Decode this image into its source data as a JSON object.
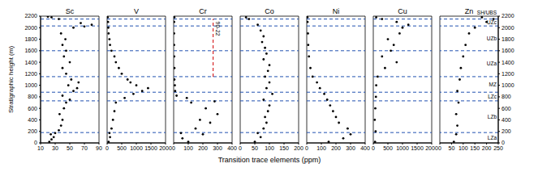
{
  "chart_data": [
    {
      "type": "scatter",
      "title": "Sc",
      "color": "#000000",
      "marker": "circle",
      "grid": false,
      "x": [
        22,
        25,
        28,
        24,
        30,
        35,
        38,
        40,
        36,
        42,
        45,
        50,
        40,
        55,
        60,
        48,
        62,
        52,
        45,
        40,
        50,
        42,
        45,
        40,
        44,
        38,
        55,
        70,
        80,
        65,
        35,
        25,
        20
      ],
      "y": [
        20,
        60,
        100,
        150,
        170,
        220,
        300,
        400,
        500,
        600,
        700,
        750,
        820,
        900,
        950,
        1000,
        1050,
        1100,
        1200,
        1300,
        1400,
        1500,
        1600,
        1700,
        1800,
        1900,
        2000,
        2020,
        2050,
        2080,
        2150,
        2180,
        2190
      ],
      "xlim": [
        10,
        90
      ],
      "xticks": [
        10,
        30,
        50,
        70,
        90
      ],
      "ylim": [
        0,
        2200
      ],
      "yticks": [
        0,
        200,
        400,
        600,
        800,
        1000,
        1200,
        1400,
        1600,
        1800,
        2000,
        2200
      ]
    },
    {
      "type": "scatter",
      "title": "V",
      "color": "#000000",
      "marker": "circle",
      "grid": false,
      "tick_labels": "x",
      "x": [
        50,
        100,
        80,
        150,
        200,
        250,
        300,
        600,
        900,
        1200,
        1400,
        1000,
        800,
        700,
        500,
        400,
        300,
        250,
        150,
        100,
        80,
        50,
        40,
        30,
        20
      ],
      "y": [
        20,
        100,
        170,
        250,
        400,
        550,
        700,
        780,
        850,
        900,
        950,
        1000,
        1050,
        1100,
        1200,
        1300,
        1400,
        1500,
        1600,
        1700,
        1800,
        1900,
        2000,
        2100,
        2180
      ],
      "xlim": [
        0,
        2000
      ],
      "xticks": [
        0,
        500,
        1000,
        1500,
        2000
      ],
      "ylim": [
        0,
        2200
      ],
      "yticks": [
        0,
        200,
        400,
        600,
        800,
        1000,
        1200,
        1400,
        1600,
        1800,
        2000,
        2200
      ]
    },
    {
      "type": "scatter",
      "title": "Cr",
      "color": "#000000",
      "marker": "circle",
      "grid": false,
      "tick_labels": "x",
      "x": [
        100,
        60,
        200,
        50,
        150,
        250,
        180,
        300,
        220,
        120,
        280,
        90,
        20,
        10,
        8,
        5,
        5,
        4,
        3,
        3,
        3,
        5
      ],
      "y": [
        20,
        80,
        150,
        170,
        250,
        350,
        400,
        500,
        600,
        700,
        720,
        780,
        820,
        900,
        1000,
        1100,
        1300,
        1500,
        1700,
        1900,
        2100,
        2180
      ],
      "xlim": [
        0,
        400
      ],
      "xticks": [
        0,
        100,
        200,
        300,
        400
      ],
      "ylim": [
        0,
        2200
      ],
      "yticks": [
        0,
        200,
        400,
        600,
        800,
        1000,
        1200,
        1400,
        1600,
        1800,
        2000,
        2200
      ],
      "annotations": [
        {
          "text": "90-22",
          "x": 270,
          "y": [
            1150,
            2150
          ],
          "color": "#d62728",
          "line_style": "dashed"
        }
      ]
    },
    {
      "type": "scatter",
      "title": "Co",
      "color": "#000000",
      "marker": "circle",
      "grid": false,
      "tick_labels": "x",
      "x": [
        50,
        70,
        60,
        80,
        90,
        85,
        95,
        100,
        80,
        110,
        90,
        100,
        85,
        95,
        100,
        80,
        90,
        85,
        75,
        80,
        70,
        60,
        30,
        20
      ],
      "y": [
        20,
        100,
        170,
        250,
        350,
        450,
        550,
        650,
        750,
        850,
        950,
        1050,
        1150,
        1250,
        1350,
        1450,
        1550,
        1650,
        1750,
        1850,
        1950,
        2050,
        2150,
        2180
      ],
      "xlim": [
        0,
        200
      ],
      "xticks": [
        0,
        50,
        100,
        150,
        200
      ],
      "ylim": [
        0,
        2200
      ],
      "yticks": [
        0,
        200,
        400,
        600,
        800,
        1000,
        1200,
        1400,
        1600,
        1800,
        2000,
        2200
      ]
    },
    {
      "type": "scatter",
      "title": "Ni",
      "color": "#000000",
      "marker": "circle",
      "grid": false,
      "tick_labels": "x",
      "x": [
        150,
        250,
        300,
        280,
        220,
        200,
        180,
        160,
        140,
        120,
        90,
        70,
        40,
        25,
        15,
        10,
        8,
        5,
        5
      ],
      "y": [
        20,
        80,
        150,
        250,
        350,
        450,
        550,
        650,
        750,
        850,
        950,
        1050,
        1150,
        1300,
        1500,
        1700,
        1900,
        2100,
        2180
      ],
      "xlim": [
        0,
        400
      ],
      "xticks": [
        0,
        100,
        200,
        300,
        400
      ],
      "ylim": [
        0,
        2200
      ],
      "yticks": [
        0,
        200,
        400,
        600,
        800,
        1000,
        1200,
        1400,
        1600,
        1800,
        2000,
        2200
      ]
    },
    {
      "type": "scatter",
      "title": "Cu",
      "color": "#000000",
      "marker": "circle",
      "grid": false,
      "tick_labels": "x",
      "x": [
        60,
        80,
        50,
        70,
        90,
        100,
        150,
        400,
        800,
        300,
        600,
        700,
        500,
        900,
        1000,
        1200,
        800,
        300,
        100
      ],
      "y": [
        20,
        200,
        400,
        600,
        800,
        1000,
        1150,
        1300,
        1400,
        1500,
        1600,
        1700,
        1800,
        1900,
        2000,
        2050,
        2100,
        2150,
        2180
      ],
      "xlim": [
        0,
        2000
      ],
      "xticks": [
        0,
        500,
        1000,
        1500,
        2000
      ],
      "ylim": [
        0,
        2200
      ],
      "yticks": [
        0,
        200,
        400,
        600,
        800,
        1000,
        1200,
        1400,
        1600,
        1800,
        2000,
        2200
      ]
    },
    {
      "type": "scatter",
      "title": "Zn",
      "color": "#000000",
      "marker": "circle",
      "grid": false,
      "x": [
        60,
        70,
        75,
        70,
        80,
        75,
        85,
        90,
        100,
        110,
        125,
        150,
        200,
        230,
        180
      ],
      "y": [
        20,
        150,
        300,
        500,
        700,
        900,
        1100,
        1300,
        1500,
        1700,
        1900,
        2000,
        2100,
        2150,
        2180
      ],
      "xlim": [
        0,
        250
      ],
      "xticks": [
        0,
        50,
        100,
        150,
        200,
        250
      ],
      "ylim": [
        0,
        2200
      ],
      "yticks": [
        0,
        200,
        400,
        600,
        800,
        1000,
        1200,
        1400,
        1600,
        1800,
        2000,
        2200
      ]
    }
  ],
  "xlabel": "Transition trace elements (ppm)",
  "ylabel": "Stratigraphic height (m)",
  "zones": {
    "boundaries": [
      180,
      730,
      880,
      1150,
      1600,
      2030,
      2150
    ],
    "labels": [
      "LZa",
      "LZb",
      "LZc",
      "MZ",
      "UZa",
      "UZb",
      "UZc",
      "SH/UBS"
    ],
    "color": "#2050b0",
    "line_style": "dashed"
  }
}
